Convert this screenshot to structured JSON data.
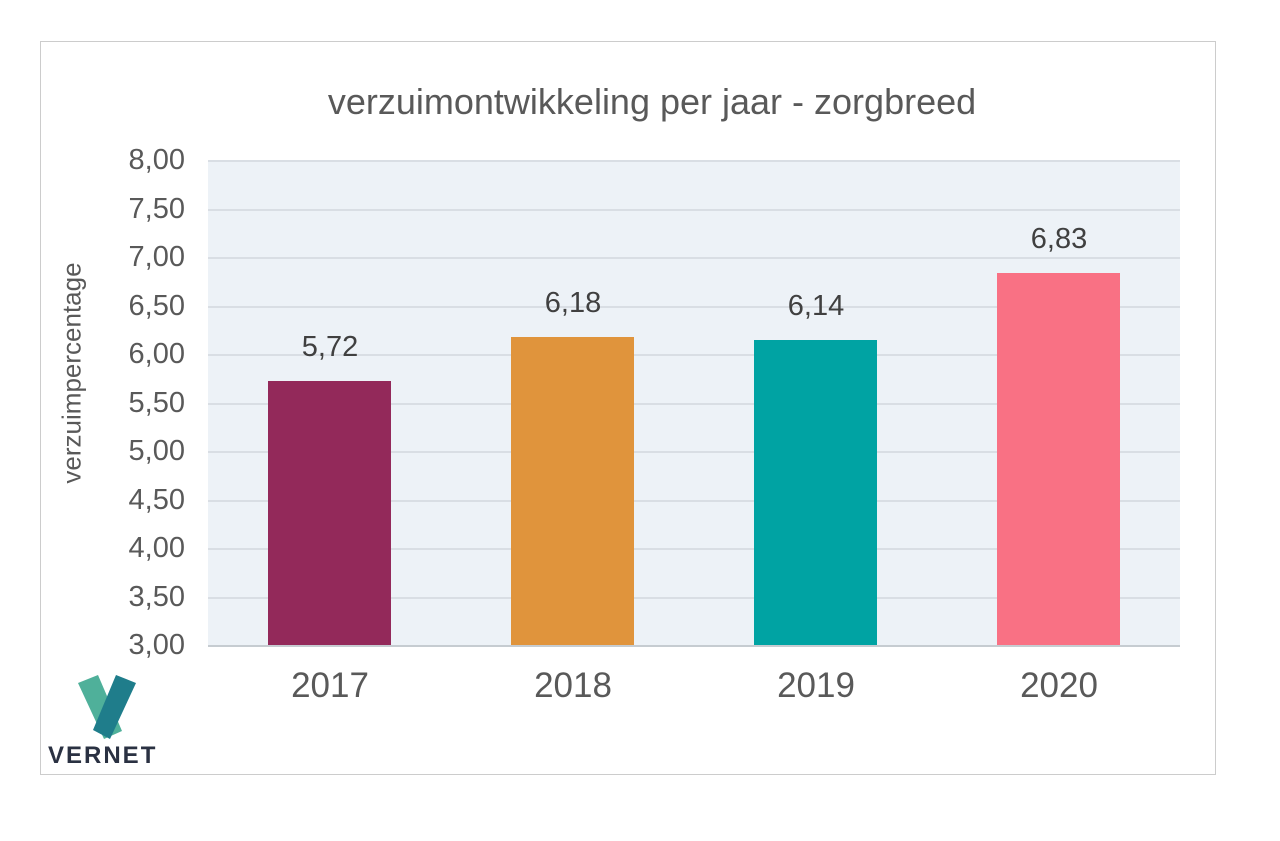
{
  "chart_data": {
    "type": "bar",
    "title": "verzuimontwikkeling per jaar - zorgbreed",
    "xlabel": "",
    "ylabel": "verzuimpercentage",
    "categories": [
      "2017",
      "2018",
      "2019",
      "2020"
    ],
    "values": [
      5.72,
      6.18,
      6.14,
      6.83
    ],
    "value_labels": [
      "5,72",
      "6,18",
      "6,14",
      "6,83"
    ],
    "bar_colors": [
      "#93295A",
      "#E0943C",
      "#00A3A3",
      "#F97184"
    ],
    "ylim": [
      3.0,
      8.0
    ],
    "ytick_interval": 0.5,
    "ytick_labels": [
      "8,00",
      "7,50",
      "7,00",
      "6,50",
      "6,00",
      "5,50",
      "5,00",
      "4,50",
      "4,00",
      "3,50",
      "3,00"
    ],
    "grid": true,
    "legend": "none",
    "plot_background": "#EDF2F7",
    "grid_color": "#D9DEE4",
    "axis_line_color": "#C6CCD1",
    "title_color": "#595959",
    "tick_color": "#595959",
    "value_label_color": "#404040"
  },
  "logo": {
    "text": "VERNET",
    "text_color": "#2A3142",
    "v_left_color": "#4FB09A",
    "v_right_color": "#1F7D8B"
  }
}
